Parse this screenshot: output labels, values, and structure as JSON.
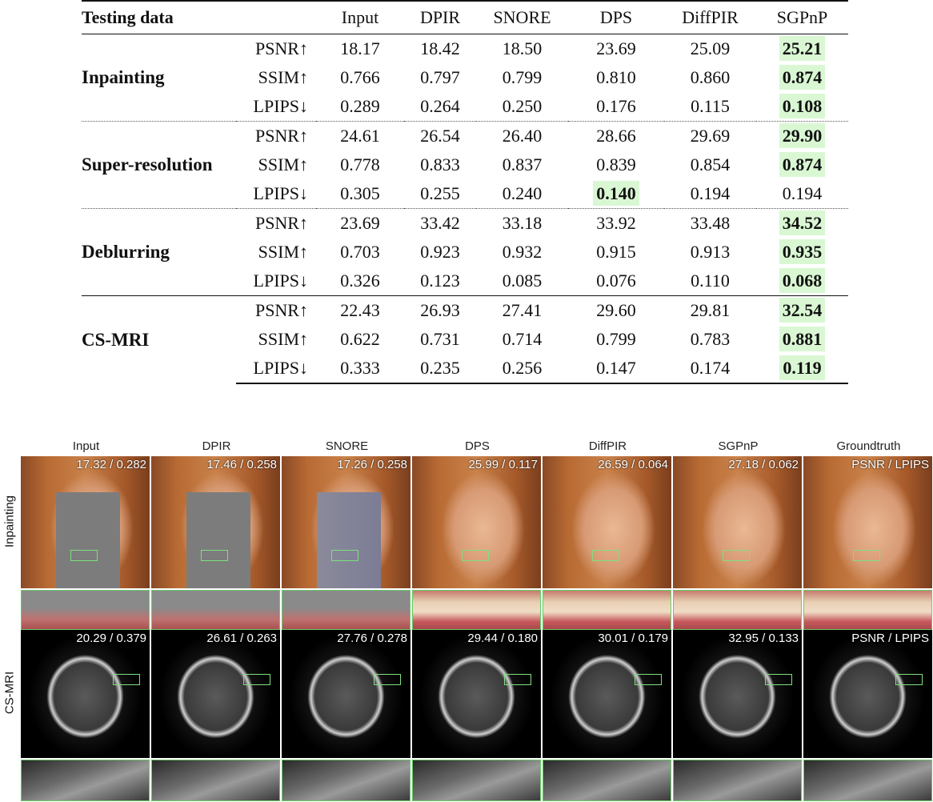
{
  "table": {
    "header": [
      "Testing data",
      "",
      "Input",
      "DPIR",
      "SNORE",
      "DPS",
      "DiffPIR",
      "SGPnP"
    ],
    "groups": [
      {
        "name": "Inpainting",
        "separator": "none",
        "rows": [
          {
            "metric": "PSNR↑",
            "values": [
              "18.17",
              "18.42",
              "18.50",
              "23.69",
              "25.09",
              "25.21"
            ],
            "best": 5
          },
          {
            "metric": "SSIM↑",
            "values": [
              "0.766",
              "0.797",
              "0.799",
              "0.810",
              "0.860",
              "0.874"
            ],
            "best": 5
          },
          {
            "metric": "LPIPS↓",
            "values": [
              "0.289",
              "0.264",
              "0.250",
              "0.176",
              "0.115",
              "0.108"
            ],
            "best": 5
          }
        ]
      },
      {
        "name": "Super-resolution",
        "separator": "dotted",
        "rows": [
          {
            "metric": "PSNR↑",
            "values": [
              "24.61",
              "26.54",
              "26.40",
              "28.66",
              "29.69",
              "29.90"
            ],
            "best": 5
          },
          {
            "metric": "SSIM↑",
            "values": [
              "0.778",
              "0.833",
              "0.837",
              "0.839",
              "0.854",
              "0.874"
            ],
            "best": 5
          },
          {
            "metric": "LPIPS↓",
            "values": [
              "0.305",
              "0.255",
              "0.240",
              "0.140",
              "0.194",
              "0.194"
            ],
            "best": 3
          }
        ]
      },
      {
        "name": "Deblurring",
        "separator": "dotted",
        "rows": [
          {
            "metric": "PSNR↑",
            "values": [
              "23.69",
              "33.42",
              "33.18",
              "33.92",
              "33.48",
              "34.52"
            ],
            "best": 5
          },
          {
            "metric": "SSIM↑",
            "values": [
              "0.703",
              "0.923",
              "0.932",
              "0.915",
              "0.913",
              "0.935"
            ],
            "best": 5
          },
          {
            "metric": "LPIPS↓",
            "values": [
              "0.326",
              "0.123",
              "0.085",
              "0.076",
              "0.110",
              "0.068"
            ],
            "best": 5
          }
        ]
      },
      {
        "name": "CS-MRI",
        "separator": "solid",
        "rows": [
          {
            "metric": "PSNR↑",
            "values": [
              "22.43",
              "26.93",
              "27.41",
              "29.60",
              "29.81",
              "32.54"
            ],
            "best": 5
          },
          {
            "metric": "SSIM↑",
            "values": [
              "0.622",
              "0.731",
              "0.714",
              "0.799",
              "0.783",
              "0.881"
            ],
            "best": 5
          },
          {
            "metric": "LPIPS↓",
            "values": [
              "0.333",
              "0.235",
              "0.256",
              "0.147",
              "0.174",
              "0.119"
            ],
            "best": 5
          }
        ]
      }
    ],
    "highlight_color": "#d9f7d3"
  },
  "figure": {
    "columns": [
      "Input",
      "DPIR",
      "SNORE",
      "DPS",
      "DiffPIR",
      "SGPnP",
      "Groundtruth"
    ],
    "rows": [
      {
        "label": "Inpainting",
        "type": "face",
        "metrics": [
          "17.32 / 0.282",
          "17.46 / 0.258",
          "17.26 / 0.258",
          "25.99 / 0.117",
          "26.59 / 0.064",
          "27.18 / 0.062",
          "PSNR / LPIPS"
        ],
        "masked": [
          true,
          true,
          true,
          false,
          false,
          false,
          false
        ]
      },
      {
        "label": "CS-MRI",
        "type": "mri",
        "metrics": [
          "20.29 / 0.379",
          "26.61 / 0.263",
          "27.76 / 0.278",
          "29.44 / 0.180",
          "30.01 / 0.179",
          "32.95 / 0.133",
          "PSNR / LPIPS"
        ],
        "masked": [
          false,
          false,
          false,
          false,
          false,
          false,
          false
        ]
      }
    ],
    "zoom_box_color": "#7ee07e"
  }
}
